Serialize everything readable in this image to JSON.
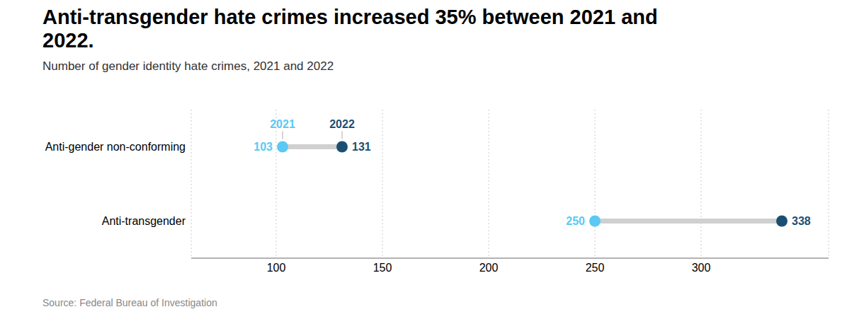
{
  "chart_data": {
    "type": "dumbbell",
    "title": "Anti-transgender hate crimes increased 35% between 2021 and\n2022.",
    "subtitle": "Number of gender identity hate crimes, 2021 and 2022",
    "annotations": [
      "Source: Federal Bureau of Investigation"
    ],
    "categories": [
      "Anti-gender non-conforming",
      "Anti-transgender"
    ],
    "series": [
      {
        "name": "2021",
        "color": "#5BC8F5",
        "values": [
          103,
          250
        ]
      },
      {
        "name": "2022",
        "color": "#1B4F72",
        "values": [
          131,
          338
        ]
      }
    ],
    "xlim": [
      60,
      360
    ],
    "xticks": [
      100,
      150,
      200,
      250,
      300
    ],
    "grid": true,
    "data_labels": true
  }
}
